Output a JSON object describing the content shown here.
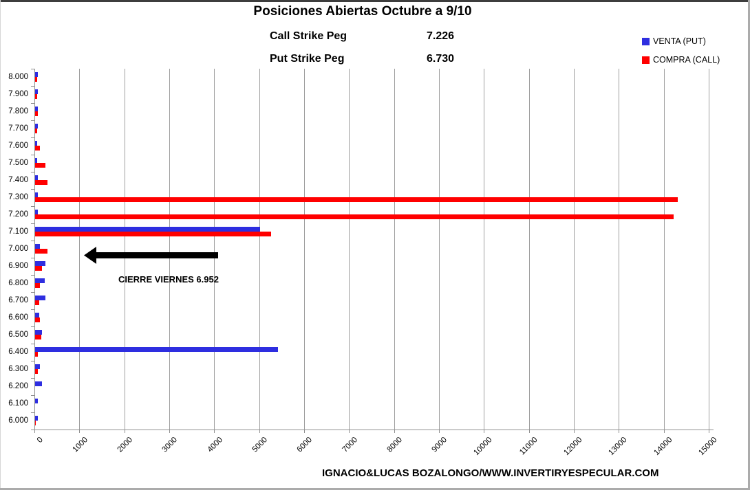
{
  "header": {
    "title": "Posiciones Abiertas Octubre a 9/10",
    "call_strike_label": "Call Strike Peg",
    "call_strike_value": "7.226",
    "put_strike_label": "Put Strike Peg",
    "put_strike_value": "6.730"
  },
  "legend": {
    "items": [
      {
        "label": "VENTA (PUT)",
        "color": "#2E2EE0"
      },
      {
        "label": "COMPRA (CALL)",
        "color": "#FF0000"
      }
    ]
  },
  "annotation": {
    "text": "CIERRE VIERNES 6.952",
    "arrow": "left-arrow"
  },
  "footer": {
    "credit": "IGNACIO&LUCAS BOZALONGO/WWW.INVERTIRYESPECULAR.COM"
  },
  "chart_data": {
    "type": "bar",
    "orientation": "horizontal",
    "title": "Posiciones Abiertas Octubre a 9/10",
    "categories": [
      "8.000",
      "7.900",
      "7.800",
      "7.700",
      "7.600",
      "7.500",
      "7.400",
      "7.300",
      "7.200",
      "7.100",
      "7.000",
      "6.900",
      "6.800",
      "6.700",
      "6.600",
      "6.500",
      "6.400",
      "6.300",
      "6.200",
      "6.100",
      "6.000"
    ],
    "series": [
      {
        "name": "VENTA (PUT)",
        "color": "#2E2EE0",
        "values": [
          60,
          60,
          55,
          55,
          50,
          50,
          55,
          60,
          60,
          5000,
          110,
          230,
          210,
          230,
          90,
          150,
          5400,
          105,
          150,
          55,
          65
        ]
      },
      {
        "name": "COMPRA (CALL)",
        "color": "#FF0000",
        "values": [
          50,
          50,
          55,
          50,
          110,
          230,
          270,
          14300,
          14200,
          5250,
          270,
          150,
          100,
          90,
          105,
          135,
          60,
          60,
          0,
          0,
          20
        ]
      }
    ],
    "xlim": [
      0,
      15000
    ],
    "x_ticks": [
      0,
      1000,
      2000,
      3000,
      4000,
      5000,
      6000,
      7000,
      8000,
      9000,
      10000,
      11000,
      12000,
      13000,
      14000,
      15000
    ],
    "grid": true,
    "legend_position": "top-right",
    "grid_color": "#9d9d9d"
  }
}
